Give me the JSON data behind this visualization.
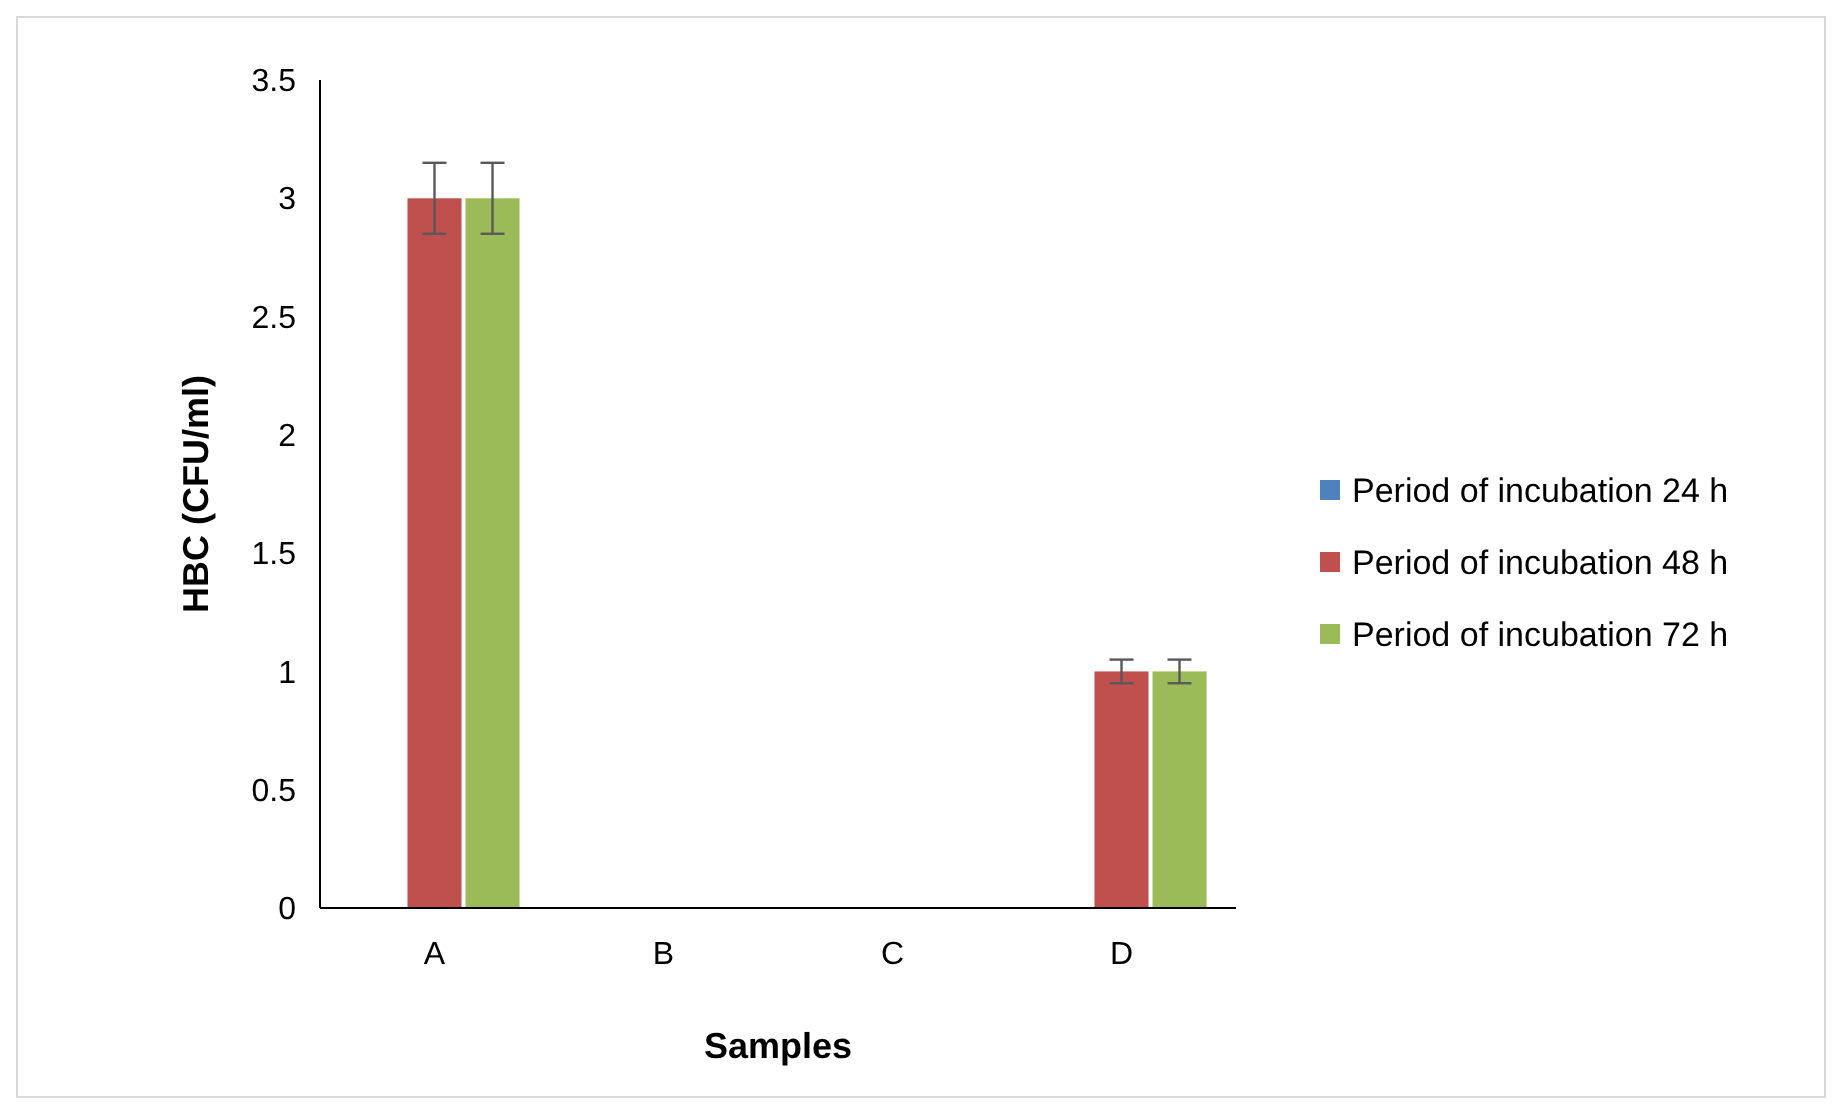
{
  "chart_data": {
    "type": "bar",
    "xlabel": "Samples",
    "ylabel": "HBC (CFU/ml)",
    "categories": [
      "A",
      "B",
      "C",
      "D"
    ],
    "series": [
      {
        "name": "Period of incubation 24 h",
        "color": "#4f81bd",
        "values": [
          0,
          0,
          0,
          0
        ]
      },
      {
        "name": "Period of incubation 48 h",
        "color": "#c0504d",
        "values": [
          3,
          0,
          0,
          1
        ],
        "errors": [
          0.15,
          null,
          null,
          0.05
        ]
      },
      {
        "name": "Period of incubation 72 h",
        "color": "#9bbb59",
        "values": [
          3,
          0,
          0,
          1
        ],
        "errors": [
          0.15,
          null,
          null,
          0.05
        ]
      }
    ],
    "ylim": [
      0,
      3.5
    ],
    "yticks": [
      0,
      0.5,
      1,
      1.5,
      2,
      2.5,
      3,
      3.5
    ],
    "grid": false,
    "legend": "right"
  }
}
